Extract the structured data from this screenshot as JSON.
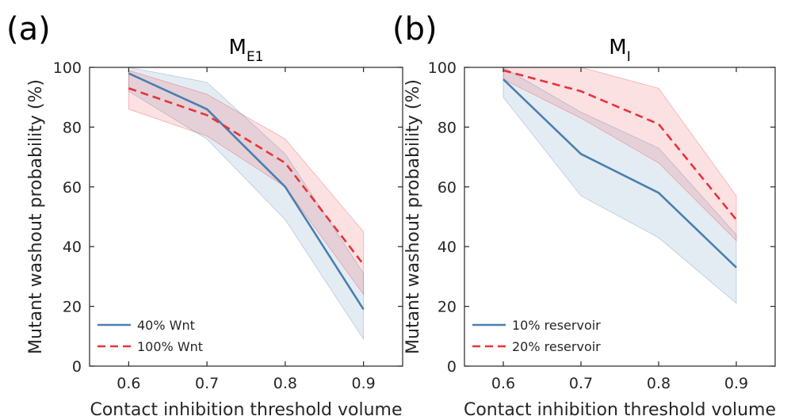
{
  "chart_data": [
    {
      "type": "line",
      "panel_label": "(a)",
      "title": "M",
      "title_subscript": "E1",
      "xlabel": "Contact inhibition threshold volume",
      "ylabel": "Mutant washout probability (%)",
      "xlim": [
        0.55,
        0.95
      ],
      "ylim": [
        0,
        100
      ],
      "xticks": [
        "0.6",
        "0.7",
        "0.8",
        "0.9"
      ],
      "yticks": [
        "0",
        "20",
        "40",
        "60",
        "80",
        "100"
      ],
      "legend_position": "bottom-left",
      "x": [
        0.6,
        0.7,
        0.8,
        0.9
      ],
      "series": [
        {
          "name": "40% Wnt",
          "color": "#4a7fb0",
          "style": "solid",
          "values": [
            98,
            86,
            60,
            19
          ],
          "lower": [
            92,
            76,
            49,
            9
          ],
          "upper": [
            100,
            95,
            71,
            31
          ]
        },
        {
          "name": "100% Wnt",
          "color": "#e8333a",
          "style": "dashed",
          "values": [
            93,
            84,
            68,
            34
          ],
          "lower": [
            86,
            77,
            60,
            24
          ],
          "upper": [
            99,
            91,
            76,
            45
          ]
        }
      ]
    },
    {
      "type": "line",
      "panel_label": "(b)",
      "title": "M",
      "title_subscript": "I",
      "xlabel": "Contact inhibition threshold volume",
      "ylabel": "Mutant washout probability (%)",
      "xlim": [
        0.55,
        0.95
      ],
      "ylim": [
        0,
        100
      ],
      "xticks": [
        "0.6",
        "0.7",
        "0.8",
        "0.9"
      ],
      "yticks": [
        "0",
        "20",
        "40",
        "60",
        "80",
        "100"
      ],
      "legend_position": "bottom-left",
      "x": [
        0.6,
        0.7,
        0.8,
        0.9
      ],
      "series": [
        {
          "name": "10% reservoir",
          "color": "#4a7fb0",
          "style": "solid",
          "values": [
            96,
            71,
            58,
            33
          ],
          "lower": [
            90,
            57,
            43,
            21
          ],
          "upper": [
            100,
            85,
            73,
            44
          ]
        },
        {
          "name": "20% reservoir",
          "color": "#e8333a",
          "style": "dashed",
          "values": [
            99,
            92,
            81,
            49
          ],
          "lower": [
            96,
            83,
            68,
            42
          ],
          "upper": [
            100,
            100,
            93,
            57
          ]
        }
      ]
    }
  ]
}
